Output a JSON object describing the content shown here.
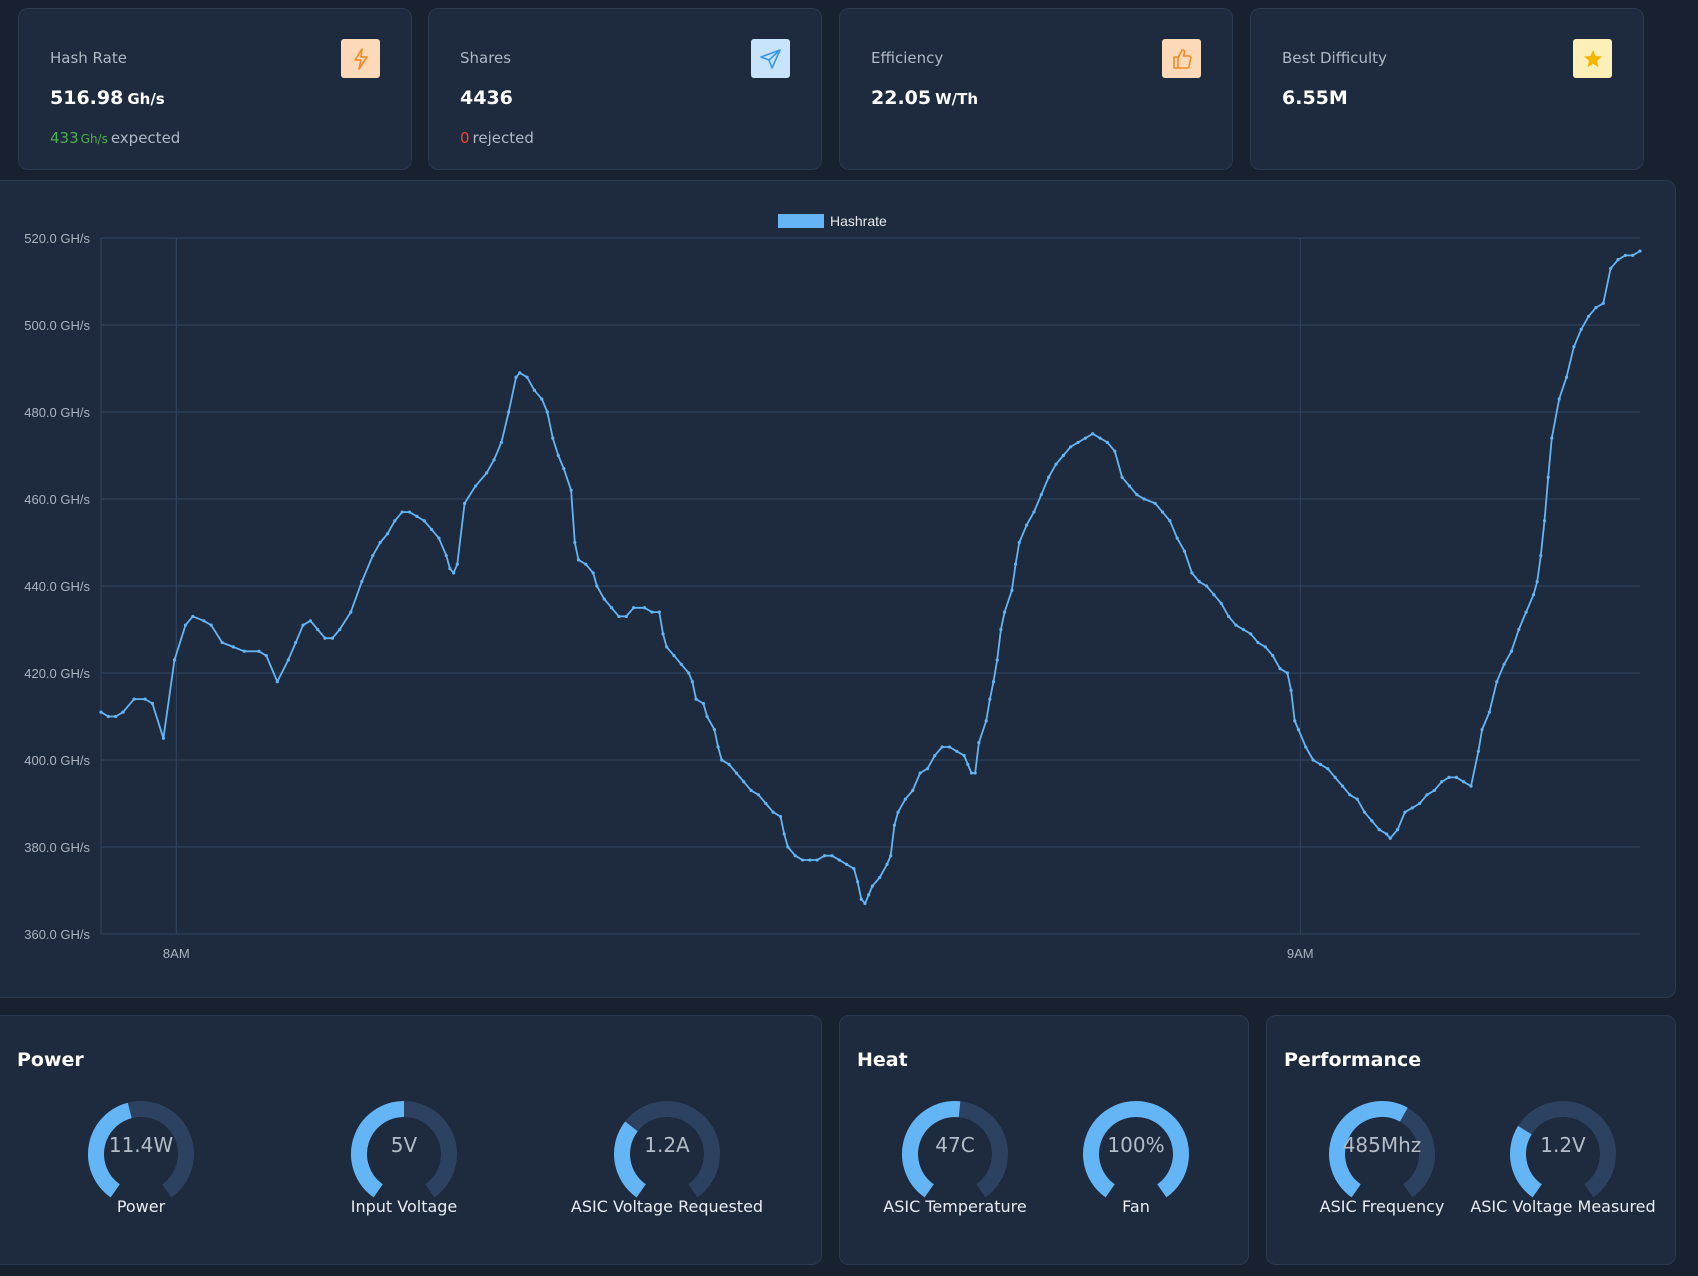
{
  "stats": [
    {
      "label": "Hash Rate",
      "value": "516.98",
      "unit": "Gh/s",
      "sub_value": "433",
      "sub_unit": "Gh/s",
      "sub_text": "expected",
      "icon": "bolt-icon",
      "icon_bg": "#fcd9b8",
      "icon_color": "#f08a24"
    },
    {
      "label": "Shares",
      "value": "4436",
      "unit": "",
      "sub_value": "0",
      "sub_text": "rejected",
      "icon": "send-icon",
      "icon_bg": "#c8e4fb",
      "icon_color": "#3a97e8"
    },
    {
      "label": "Efficiency",
      "value": "22.05",
      "unit": "W/Th",
      "icon": "thumbs-up-icon",
      "icon_bg": "#fcd9b8",
      "icon_color": "#f08a24"
    },
    {
      "label": "Best Difficulty",
      "value": "6.55M",
      "unit": "",
      "icon": "star-icon",
      "icon_bg": "#fdefb8",
      "icon_color": "#f7b500"
    }
  ],
  "chart_data": {
    "type": "line",
    "legend": [
      "Hashrate"
    ],
    "legend_position": "top-center",
    "series": [
      {
        "name": "Hashrate",
        "color": "#64b5f6",
        "points": [
          [
            0,
            411
          ],
          [
            4,
            410
          ],
          [
            8,
            410
          ],
          [
            12,
            411
          ],
          [
            18,
            414
          ],
          [
            24,
            414
          ],
          [
            28,
            413
          ],
          [
            34,
            405
          ],
          [
            40,
            423
          ],
          [
            46,
            431
          ],
          [
            50,
            433
          ],
          [
            56,
            432
          ],
          [
            60,
            431
          ],
          [
            66,
            427
          ],
          [
            72,
            426
          ],
          [
            78,
            425
          ],
          [
            86,
            425
          ],
          [
            90,
            424
          ],
          [
            96,
            418
          ],
          [
            102,
            423
          ],
          [
            106,
            427
          ],
          [
            110,
            431
          ],
          [
            114,
            432
          ],
          [
            118,
            430
          ],
          [
            122,
            428
          ],
          [
            126,
            428
          ],
          [
            130,
            430
          ],
          [
            136,
            434
          ],
          [
            142,
            441
          ],
          [
            148,
            447
          ],
          [
            152,
            450
          ],
          [
            156,
            452
          ],
          [
            160,
            455
          ],
          [
            164,
            457
          ],
          [
            168,
            457
          ],
          [
            172,
            456
          ],
          [
            176,
            455
          ],
          [
            180,
            453
          ],
          [
            184,
            451
          ],
          [
            188,
            447
          ],
          [
            190,
            444
          ],
          [
            192,
            443
          ],
          [
            194,
            445
          ],
          [
            198,
            459
          ],
          [
            204,
            463
          ],
          [
            210,
            466
          ],
          [
            214,
            469
          ],
          [
            218,
            473
          ],
          [
            222,
            480
          ],
          [
            226,
            488
          ],
          [
            228,
            489
          ],
          [
            232,
            488
          ],
          [
            236,
            485
          ],
          [
            240,
            483
          ],
          [
            243,
            480
          ],
          [
            246,
            474
          ],
          [
            249,
            470
          ],
          [
            252,
            467
          ],
          [
            256,
            462
          ],
          [
            258,
            450
          ],
          [
            260,
            446
          ],
          [
            264,
            445
          ],
          [
            268,
            443
          ],
          [
            270,
            440
          ],
          [
            274,
            437
          ],
          [
            278,
            435
          ],
          [
            282,
            433
          ],
          [
            286,
            433
          ],
          [
            290,
            435
          ],
          [
            296,
            435
          ],
          [
            300,
            434
          ],
          [
            304,
            434
          ],
          [
            306,
            429
          ],
          [
            308,
            426
          ],
          [
            312,
            424
          ],
          [
            316,
            422
          ],
          [
            320,
            420
          ],
          [
            322,
            418
          ],
          [
            324,
            414
          ],
          [
            328,
            413
          ],
          [
            330,
            410
          ],
          [
            334,
            407
          ],
          [
            336,
            403
          ],
          [
            338,
            400
          ],
          [
            342,
            399
          ],
          [
            346,
            397
          ],
          [
            350,
            395
          ],
          [
            354,
            393
          ],
          [
            358,
            392
          ],
          [
            362,
            390
          ],
          [
            366,
            388
          ],
          [
            370,
            387
          ],
          [
            372,
            383
          ],
          [
            374,
            380
          ],
          [
            378,
            378
          ],
          [
            382,
            377
          ],
          [
            386,
            377
          ],
          [
            390,
            377
          ],
          [
            394,
            378
          ],
          [
            398,
            378
          ],
          [
            402,
            377
          ],
          [
            406,
            376
          ],
          [
            410,
            375
          ],
          [
            412,
            372
          ],
          [
            414,
            368
          ],
          [
            416,
            367
          ],
          [
            418,
            369
          ],
          [
            420,
            371
          ],
          [
            424,
            373
          ],
          [
            428,
            376
          ],
          [
            430,
            378
          ],
          [
            432,
            385
          ],
          [
            434,
            388
          ],
          [
            438,
            391
          ],
          [
            442,
            393
          ],
          [
            446,
            397
          ],
          [
            450,
            398
          ],
          [
            454,
            401
          ],
          [
            458,
            403
          ],
          [
            462,
            403
          ],
          [
            466,
            402
          ],
          [
            470,
            401
          ],
          [
            472,
            399
          ],
          [
            474,
            397
          ],
          [
            476,
            397
          ],
          [
            478,
            404
          ],
          [
            482,
            409
          ],
          [
            484,
            414
          ],
          [
            486,
            418
          ],
          [
            488,
            423
          ],
          [
            490,
            430
          ],
          [
            492,
            434
          ],
          [
            496,
            439
          ],
          [
            498,
            445
          ],
          [
            500,
            450
          ],
          [
            504,
            454
          ],
          [
            508,
            457
          ],
          [
            512,
            461
          ],
          [
            516,
            465
          ],
          [
            520,
            468
          ],
          [
            524,
            470
          ],
          [
            528,
            472
          ],
          [
            532,
            473
          ],
          [
            536,
            474
          ],
          [
            540,
            475
          ],
          [
            544,
            474
          ],
          [
            548,
            473
          ],
          [
            552,
            471
          ],
          [
            556,
            465
          ],
          [
            560,
            463
          ],
          [
            564,
            461
          ],
          [
            568,
            460
          ],
          [
            574,
            459
          ],
          [
            578,
            457
          ],
          [
            582,
            455
          ],
          [
            586,
            451
          ],
          [
            590,
            448
          ],
          [
            594,
            443
          ],
          [
            598,
            441
          ],
          [
            602,
            440
          ],
          [
            606,
            438
          ],
          [
            610,
            436
          ],
          [
            614,
            433
          ],
          [
            618,
            431
          ],
          [
            622,
            430
          ],
          [
            626,
            429
          ],
          [
            630,
            427
          ],
          [
            634,
            426
          ],
          [
            638,
            424
          ],
          [
            642,
            421
          ],
          [
            646,
            420
          ],
          [
            648,
            416
          ],
          [
            650,
            409
          ],
          [
            652,
            407
          ],
          [
            656,
            403
          ],
          [
            660,
            400
          ],
          [
            664,
            399
          ],
          [
            668,
            398
          ],
          [
            672,
            396
          ],
          [
            676,
            394
          ],
          [
            680,
            392
          ],
          [
            684,
            391
          ],
          [
            688,
            388
          ],
          [
            692,
            386
          ],
          [
            696,
            384
          ],
          [
            700,
            383
          ],
          [
            702,
            382
          ],
          [
            706,
            384
          ],
          [
            710,
            388
          ],
          [
            714,
            389
          ],
          [
            718,
            390
          ],
          [
            722,
            392
          ],
          [
            726,
            393
          ],
          [
            730,
            395
          ],
          [
            734,
            396
          ],
          [
            738,
            396
          ],
          [
            742,
            395
          ],
          [
            746,
            394
          ],
          [
            750,
            402
          ],
          [
            752,
            407
          ],
          [
            756,
            411
          ],
          [
            760,
            418
          ],
          [
            764,
            422
          ],
          [
            768,
            425
          ],
          [
            772,
            430
          ],
          [
            776,
            434
          ],
          [
            780,
            438
          ],
          [
            782,
            441
          ],
          [
            784,
            447
          ],
          [
            786,
            455
          ],
          [
            788,
            465
          ],
          [
            790,
            474
          ],
          [
            794,
            483
          ],
          [
            798,
            488
          ],
          [
            802,
            495
          ],
          [
            806,
            499
          ],
          [
            810,
            502
          ],
          [
            814,
            504
          ],
          [
            818,
            505
          ],
          [
            822,
            513
          ],
          [
            826,
            515
          ],
          [
            830,
            516
          ],
          [
            834,
            516
          ],
          [
            838,
            517
          ]
        ]
      }
    ],
    "x_ticks": [
      {
        "value": 41,
        "label": "8AM"
      },
      {
        "value": 653,
        "label": "9AM"
      }
    ],
    "xlim": [
      0,
      838
    ],
    "y_ticks": [
      {
        "value": 520,
        "label": "520.0 GH/s"
      },
      {
        "value": 500,
        "label": "500.0 GH/s"
      },
      {
        "value": 480,
        "label": "480.0 GH/s"
      },
      {
        "value": 460,
        "label": "460.0 GH/s"
      },
      {
        "value": 440,
        "label": "440.0 GH/s"
      },
      {
        "value": 420,
        "label": "420.0 GH/s"
      },
      {
        "value": 400,
        "label": "400.0 GH/s"
      },
      {
        "value": 380,
        "label": "380.0 GH/s"
      },
      {
        "value": 360,
        "label": "360.0 GH/s"
      }
    ],
    "ylim": [
      360,
      520
    ],
    "grid": true
  },
  "panels": [
    {
      "title": "Power",
      "gauges": [
        {
          "value": "11.4W",
          "label": "Power",
          "fraction": 0.45
        },
        {
          "value": "5V",
          "label": "Input Voltage",
          "fraction": 0.5
        },
        {
          "value": "1.2A",
          "label": "ASIC Voltage Requested",
          "fraction": 0.32
        }
      ]
    },
    {
      "title": "Heat",
      "gauges": [
        {
          "value": "47C",
          "label": "ASIC Temperature",
          "fraction": 0.52
        },
        {
          "value": "100%",
          "label": "Fan",
          "fraction": 1.0
        }
      ]
    },
    {
      "title": "Performance",
      "gauges": [
        {
          "value": "485Mhz",
          "label": "ASIC Frequency",
          "fraction": 0.6
        },
        {
          "value": "1.2V",
          "label": "ASIC Voltage Measured",
          "fraction": 0.3
        }
      ]
    }
  ],
  "colors": {
    "accent": "#64b5f6",
    "gauge_track": "#2d4260",
    "success": "#4caf50",
    "danger": "#f44336"
  }
}
